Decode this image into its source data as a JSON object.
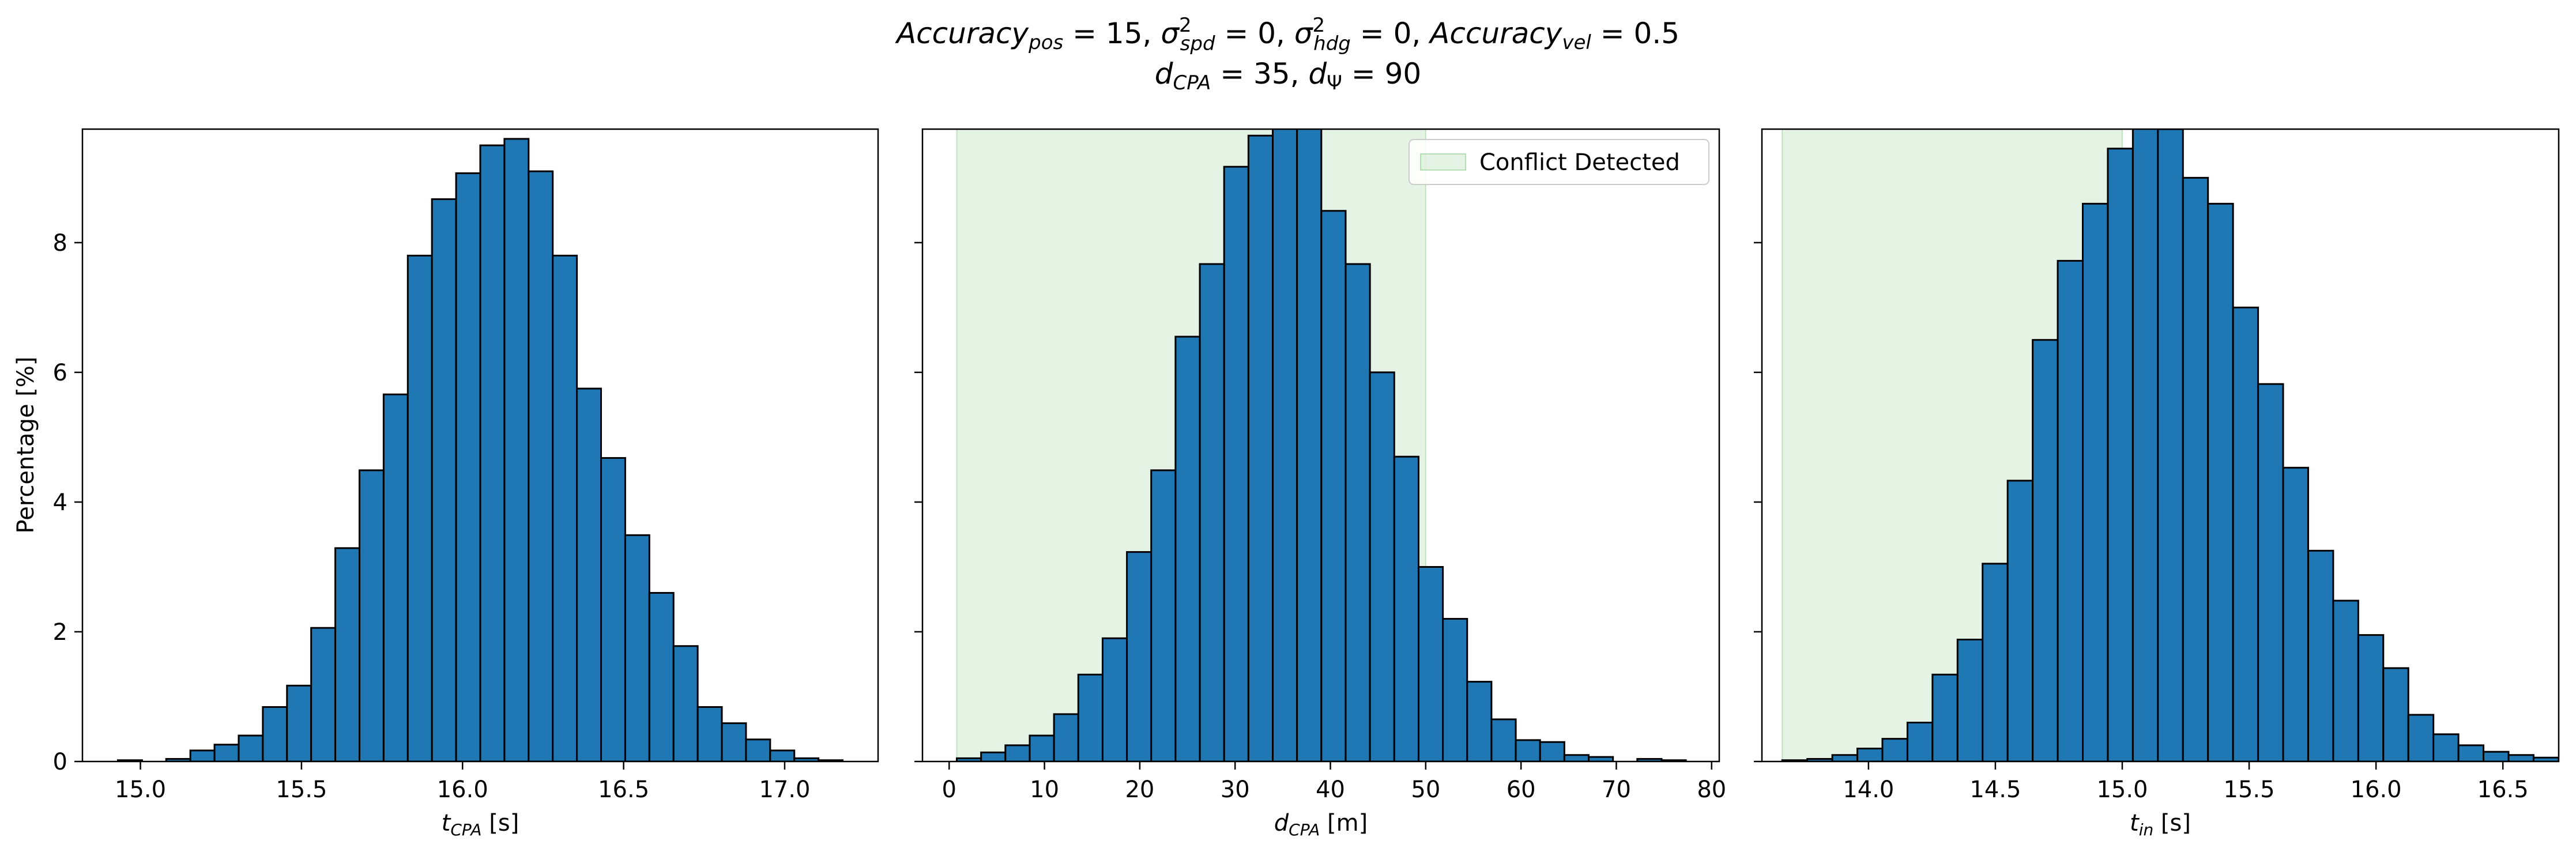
{
  "figure": {
    "title_line1": {
      "accuracy_pos": "Accuracy",
      "accuracy_pos_sub": "pos",
      "accuracy_pos_val": " = 15, ",
      "sigma_spd": "σ",
      "sigma_spd_sup": "2",
      "sigma_spd_sub": "spd",
      "sigma_spd_val": " = 0, ",
      "sigma_hdg": "σ",
      "sigma_hdg_sup": "2",
      "sigma_hdg_sub": "hdg",
      "sigma_hdg_val": " = 0, ",
      "accuracy_vel": "Accuracy",
      "accuracy_vel_sub": "vel",
      "accuracy_vel_val": " = 0.5"
    },
    "title_line2": {
      "dcpa": "d",
      "dcpa_sub": "CPA",
      "dcpa_val": " = 35, ",
      "dpsi": "d",
      "dpsi_sub": "Ψ",
      "dpsi_val": " = 90"
    },
    "ylabel": "Percentage [%]",
    "bar_color": "#1f77b4",
    "edge_color": "#000000",
    "region_color": "#2ca02c"
  },
  "chart_data": [
    {
      "type": "bar",
      "xlabel_main": "t",
      "xlabel_sub": "CPA",
      "xlabel_unit": " [s]",
      "xlim": [
        14.82,
        17.29
      ],
      "ylim": [
        0,
        9.75
      ],
      "xticks": [
        15.0,
        15.5,
        16.0,
        16.5,
        17.0
      ],
      "xtick_labels": [
        "15.0",
        "15.5",
        "16.0",
        "16.5",
        "17.0"
      ],
      "yticks": [
        0,
        2,
        4,
        6,
        8
      ],
      "ytick_labels": [
        "0",
        "2",
        "4",
        "6",
        "8"
      ],
      "bins": {
        "start": 14.93,
        "width": 0.075
      },
      "values": [
        0.02,
        0.0,
        0.04,
        0.17,
        0.26,
        0.4,
        0.84,
        1.17,
        2.06,
        3.29,
        4.49,
        5.66,
        7.8,
        8.67,
        9.07,
        9.5,
        9.6,
        9.1,
        7.8,
        5.75,
        4.68,
        3.49,
        2.6,
        1.78,
        0.84,
        0.59,
        0.34,
        0.17,
        0.05,
        0.02
      ]
    },
    {
      "type": "bar",
      "xlabel_main": "d",
      "xlabel_sub": "CPA",
      "xlabel_unit": " [m]",
      "xlim": [
        -2.8,
        80.8
      ],
      "ylim": [
        0,
        9.75
      ],
      "xticks": [
        0,
        10,
        20,
        30,
        40,
        50,
        60,
        70,
        80
      ],
      "xtick_labels": [
        "0",
        "10",
        "20",
        "30",
        "40",
        "50",
        "60",
        "70",
        "80"
      ],
      "yticks": [
        0,
        2,
        4,
        6,
        8
      ],
      "ytick_labels": [
        "",
        "",
        "",
        "",
        ""
      ],
      "region": [
        0.8,
        50.0
      ],
      "legend": {
        "label": "Conflict Detected",
        "position": "upper right"
      },
      "bins": {
        "start": 0.8,
        "width": 2.55
      },
      "values": [
        0.05,
        0.14,
        0.25,
        0.4,
        0.73,
        1.34,
        1.9,
        3.23,
        4.49,
        6.55,
        7.67,
        9.17,
        9.65,
        9.95,
        9.89,
        8.49,
        7.67,
        6.0,
        4.7,
        3.0,
        2.2,
        1.23,
        0.65,
        0.33,
        0.3,
        0.1,
        0.07,
        0.0,
        0.04,
        0.02
      ]
    },
    {
      "type": "bar",
      "xlabel_main": "t",
      "xlabel_sub": "in",
      "xlabel_unit": " [s]",
      "xlim": [
        13.58,
        16.72
      ],
      "ylim": [
        0,
        9.75
      ],
      "xticks": [
        14.0,
        14.5,
        15.0,
        15.5,
        16.0,
        16.5
      ],
      "xtick_labels": [
        "14.0",
        "14.5",
        "15.0",
        "15.5",
        "16.0",
        "16.5"
      ],
      "yticks": [
        0,
        2,
        4,
        6,
        8
      ],
      "ytick_labels": [
        "",
        "",
        "",
        "",
        ""
      ],
      "region": [
        13.66,
        15.0
      ],
      "bins": {
        "start": 13.66,
        "width": 0.0987
      },
      "values": [
        0.02,
        0.04,
        0.1,
        0.2,
        0.35,
        0.6,
        1.34,
        1.88,
        3.05,
        4.33,
        6.5,
        7.72,
        8.6,
        9.45,
        9.8,
        9.75,
        9.0,
        8.6,
        7.0,
        5.82,
        4.53,
        3.25,
        2.48,
        1.95,
        1.44,
        0.72,
        0.42,
        0.25,
        0.15,
        0.1,
        0.06
      ]
    }
  ]
}
